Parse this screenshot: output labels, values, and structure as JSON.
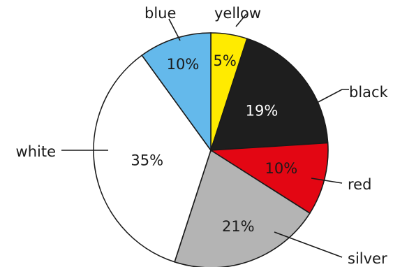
{
  "chart_data": {
    "type": "pie",
    "slices": [
      {
        "label": "yellow",
        "value": 5,
        "value_label": "5%",
        "color": "#FFEB00"
      },
      {
        "label": "black",
        "value": 19,
        "value_label": "19%",
        "color": "#1E1E1E"
      },
      {
        "label": "red",
        "value": 10,
        "value_label": "10%",
        "color": "#E30613"
      },
      {
        "label": "silver",
        "value": 21,
        "value_label": "21%",
        "color": "#B4B4B4"
      },
      {
        "label": "white",
        "value": 35,
        "value_label": "35%",
        "color": "#FFFFFF"
      },
      {
        "label": "blue",
        "value": 10,
        "value_label": "10%",
        "color": "#64B9EB"
      }
    ],
    "start_angle": "12 o'clock",
    "direction": "clockwise",
    "legend": "none (callout labels around the pie)"
  }
}
